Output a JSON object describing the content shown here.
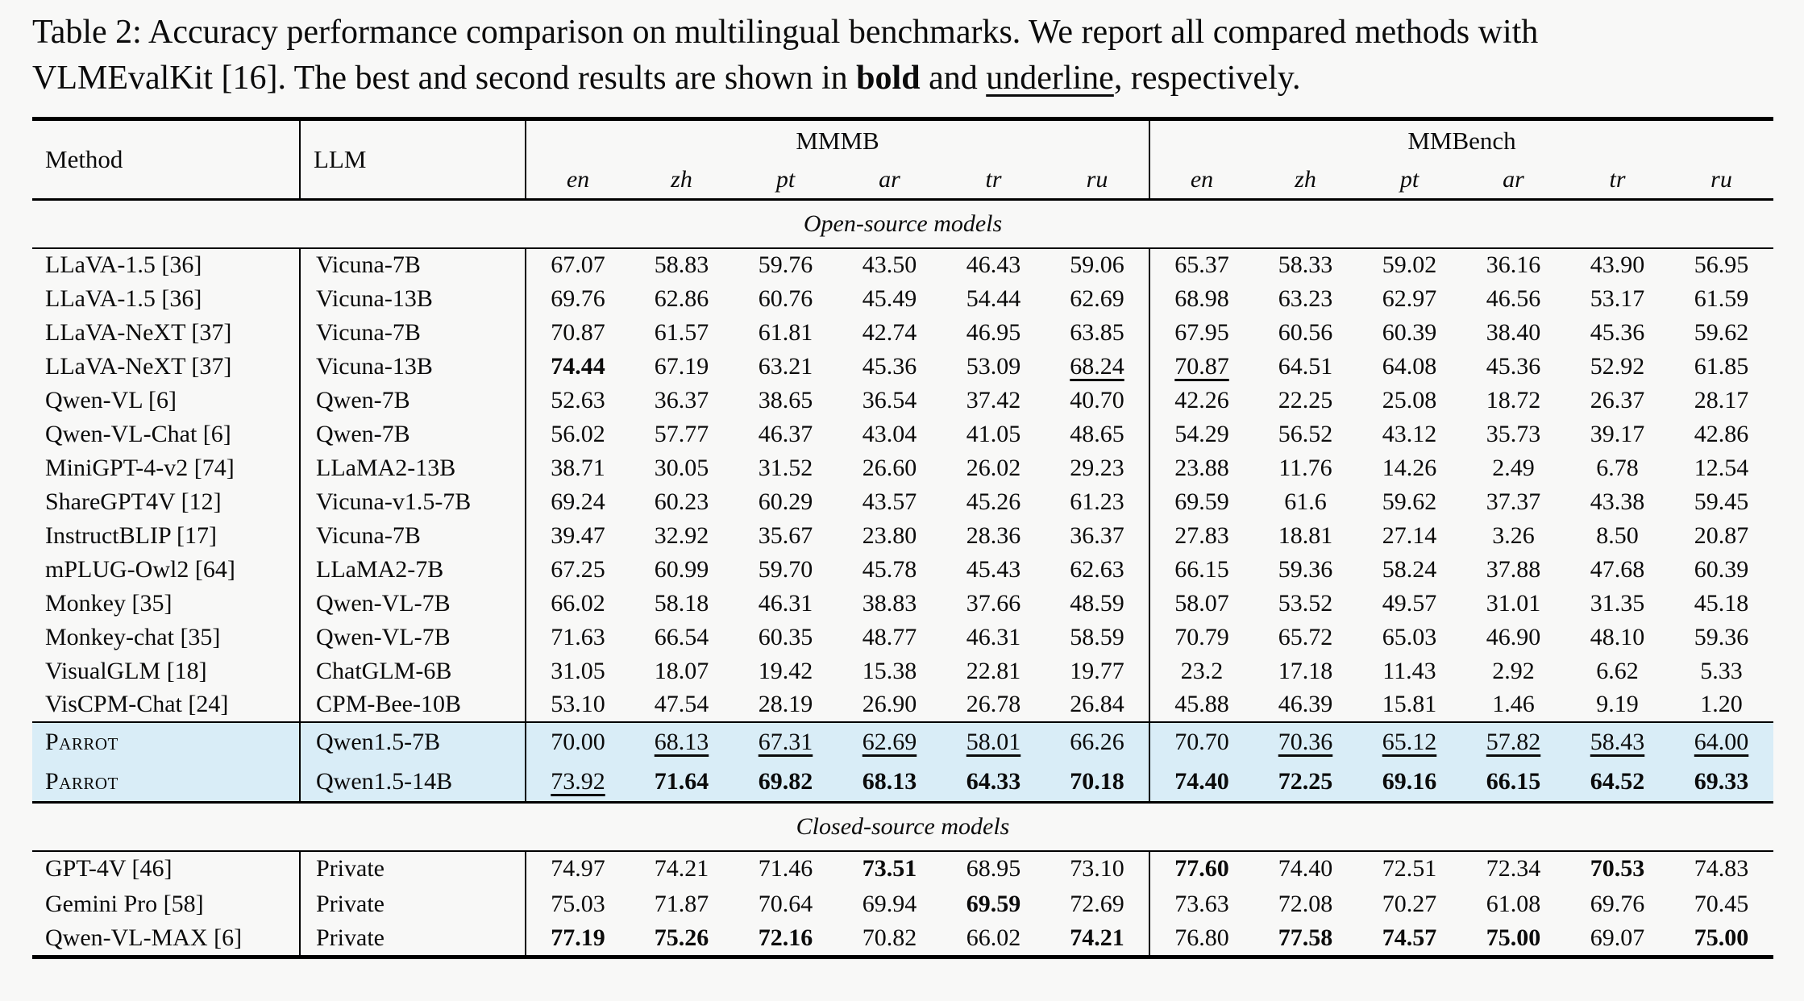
{
  "caption": {
    "line1": "Table 2: Accuracy performance comparison on multilingual benchmarks. We report all compared methods with",
    "line2_prefix": "VLMEvalKit [16]. The best and second results are shown in ",
    "line2_bold": "bold",
    "line2_mid": " and ",
    "line2_underline": "underline",
    "line2_suffix": ", respectively."
  },
  "colors": {
    "highlight": "#d9edf7"
  },
  "table": {
    "header": {
      "method": "Method",
      "llm": "LLM",
      "groups": [
        {
          "label": "MMMB",
          "langs": [
            "en",
            "zh",
            "pt",
            "ar",
            "tr",
            "ru"
          ]
        },
        {
          "label": "MMBench",
          "langs": [
            "en",
            "zh",
            "pt",
            "ar",
            "tr",
            "ru"
          ]
        }
      ]
    },
    "sections": [
      {
        "label": "Open-source models",
        "highlight": false,
        "rows": [
          {
            "method": "LLaVA-1.5 [36]",
            "llm": "Vicuna-7B",
            "vals": [
              "67.07",
              "58.83",
              "59.76",
              "43.50",
              "46.43",
              "59.06",
              "65.37",
              "58.33",
              "59.02",
              "36.16",
              "43.90",
              "56.95"
            ],
            "styles": [
              "",
              "",
              "",
              "",
              "",
              "",
              "",
              "",
              "",
              "",
              "",
              ""
            ]
          },
          {
            "method": "LLaVA-1.5 [36]",
            "llm": "Vicuna-13B",
            "vals": [
              "69.76",
              "62.86",
              "60.76",
              "45.49",
              "54.44",
              "62.69",
              "68.98",
              "63.23",
              "62.97",
              "46.56",
              "53.17",
              "61.59"
            ],
            "styles": [
              "",
              "",
              "",
              "",
              "",
              "",
              "",
              "",
              "",
              "",
              "",
              ""
            ]
          },
          {
            "method": "LLaVA-NeXT [37]",
            "llm": "Vicuna-7B",
            "vals": [
              "70.87",
              "61.57",
              "61.81",
              "42.74",
              "46.95",
              "63.85",
              "67.95",
              "60.56",
              "60.39",
              "38.40",
              "45.36",
              "59.62"
            ],
            "styles": [
              "",
              "",
              "",
              "",
              "",
              "",
              "",
              "",
              "",
              "",
              "",
              ""
            ]
          },
          {
            "method": "LLaVA-NeXT [37]",
            "llm": "Vicuna-13B",
            "vals": [
              "74.44",
              "67.19",
              "63.21",
              "45.36",
              "53.09",
              "68.24",
              "70.87",
              "64.51",
              "64.08",
              "45.36",
              "52.92",
              "61.85"
            ],
            "styles": [
              "b",
              "",
              "",
              "",
              "",
              "u",
              "u",
              "",
              "",
              "",
              "",
              ""
            ]
          },
          {
            "method": "Qwen-VL [6]",
            "llm": "Qwen-7B",
            "vals": [
              "52.63",
              "36.37",
              "38.65",
              "36.54",
              "37.42",
              "40.70",
              "42.26",
              "22.25",
              "25.08",
              "18.72",
              "26.37",
              "28.17"
            ],
            "styles": [
              "",
              "",
              "",
              "",
              "",
              "",
              "",
              "",
              "",
              "",
              "",
              ""
            ]
          },
          {
            "method": "Qwen-VL-Chat [6]",
            "llm": "Qwen-7B",
            "vals": [
              "56.02",
              "57.77",
              "46.37",
              "43.04",
              "41.05",
              "48.65",
              "54.29",
              "56.52",
              "43.12",
              "35.73",
              "39.17",
              "42.86"
            ],
            "styles": [
              "",
              "",
              "",
              "",
              "",
              "",
              "",
              "",
              "",
              "",
              "",
              ""
            ]
          },
          {
            "method": "MiniGPT-4-v2 [74]",
            "llm": "LLaMA2-13B",
            "vals": [
              "38.71",
              "30.05",
              "31.52",
              "26.60",
              "26.02",
              "29.23",
              "23.88",
              "11.76",
              "14.26",
              "2.49",
              "6.78",
              "12.54"
            ],
            "styles": [
              "",
              "",
              "",
              "",
              "",
              "",
              "",
              "",
              "",
              "",
              "",
              ""
            ]
          },
          {
            "method": "ShareGPT4V [12]",
            "llm": "Vicuna-v1.5-7B",
            "vals": [
              "69.24",
              "60.23",
              "60.29",
              "43.57",
              "45.26",
              "61.23",
              "69.59",
              "61.6",
              "59.62",
              "37.37",
              "43.38",
              "59.45"
            ],
            "styles": [
              "",
              "",
              "",
              "",
              "",
              "",
              "",
              "",
              "",
              "",
              "",
              ""
            ]
          },
          {
            "method": "InstructBLIP [17]",
            "llm": "Vicuna-7B",
            "vals": [
              "39.47",
              "32.92",
              "35.67",
              "23.80",
              "28.36",
              "36.37",
              "27.83",
              "18.81",
              "27.14",
              "3.26",
              "8.50",
              "20.87"
            ],
            "styles": [
              "",
              "",
              "",
              "",
              "",
              "",
              "",
              "",
              "",
              "",
              "",
              ""
            ]
          },
          {
            "method": "mPLUG-Owl2 [64]",
            "llm": "LLaMA2-7B",
            "vals": [
              "67.25",
              "60.99",
              "59.70",
              "45.78",
              "45.43",
              "62.63",
              "66.15",
              "59.36",
              "58.24",
              "37.88",
              "47.68",
              "60.39"
            ],
            "styles": [
              "",
              "",
              "",
              "",
              "",
              "",
              "",
              "",
              "",
              "",
              "",
              ""
            ]
          },
          {
            "method": "Monkey [35]",
            "llm": "Qwen-VL-7B",
            "vals": [
              "66.02",
              "58.18",
              "46.31",
              "38.83",
              "37.66",
              "48.59",
              "58.07",
              "53.52",
              "49.57",
              "31.01",
              "31.35",
              "45.18"
            ],
            "styles": [
              "",
              "",
              "",
              "",
              "",
              "",
              "",
              "",
              "",
              "",
              "",
              ""
            ]
          },
          {
            "method": "Monkey-chat [35]",
            "llm": "Qwen-VL-7B",
            "vals": [
              "71.63",
              "66.54",
              "60.35",
              "48.77",
              "46.31",
              "58.59",
              "70.79",
              "65.72",
              "65.03",
              "46.90",
              "48.10",
              "59.36"
            ],
            "styles": [
              "",
              "",
              "",
              "",
              "",
              "",
              "",
              "",
              "",
              "",
              "",
              ""
            ]
          },
          {
            "method": "VisualGLM [18]",
            "llm": "ChatGLM-6B",
            "vals": [
              "31.05",
              "18.07",
              "19.42",
              "15.38",
              "22.81",
              "19.77",
              "23.2",
              "17.18",
              "11.43",
              "2.92",
              "6.62",
              "5.33"
            ],
            "styles": [
              "",
              "",
              "",
              "",
              "",
              "",
              "",
              "",
              "",
              "",
              "",
              ""
            ]
          },
          {
            "method": "VisCPM-Chat [24]",
            "llm": "CPM-Bee-10B",
            "vals": [
              "53.10",
              "47.54",
              "28.19",
              "26.90",
              "26.78",
              "26.84",
              "45.88",
              "46.39",
              "15.81",
              "1.46",
              "9.19",
              "1.20"
            ],
            "styles": [
              "",
              "",
              "",
              "",
              "",
              "",
              "",
              "",
              "",
              "",
              "",
              ""
            ]
          }
        ]
      },
      {
        "label": null,
        "highlight": true,
        "rows": [
          {
            "method": "Parrot",
            "llm": "Qwen1.5-7B",
            "sc": true,
            "vals": [
              "70.00",
              "68.13",
              "67.31",
              "62.69",
              "58.01",
              "66.26",
              "70.70",
              "70.36",
              "65.12",
              "57.82",
              "58.43",
              "64.00"
            ],
            "styles": [
              "",
              "u",
              "u",
              "u",
              "u",
              "",
              "",
              "u",
              "u",
              "u",
              "u",
              "u"
            ]
          },
          {
            "method": "Parrot",
            "llm": "Qwen1.5-14B",
            "sc": true,
            "vals": [
              "73.92",
              "71.64",
              "69.82",
              "68.13",
              "64.33",
              "70.18",
              "74.40",
              "72.25",
              "69.16",
              "66.15",
              "64.52",
              "69.33"
            ],
            "styles": [
              "u",
              "b",
              "b",
              "b",
              "b",
              "b",
              "b",
              "b",
              "b",
              "b",
              "b",
              "b"
            ]
          }
        ]
      },
      {
        "label": "Closed-source models",
        "rule_top": true,
        "highlight": false,
        "rows": [
          {
            "method": "GPT-4V [46]",
            "llm": "Private",
            "vals": [
              "74.97",
              "74.21",
              "71.46",
              "73.51",
              "68.95",
              "73.10",
              "77.60",
              "74.40",
              "72.51",
              "72.34",
              "70.53",
              "74.83"
            ],
            "styles": [
              "",
              "",
              "",
              "b",
              "",
              "",
              "b",
              "",
              "",
              "",
              "b",
              ""
            ]
          },
          {
            "method": "Gemini Pro [58]",
            "llm": "Private",
            "vals": [
              "75.03",
              "71.87",
              "70.64",
              "69.94",
              "69.59",
              "72.69",
              "73.63",
              "72.08",
              "70.27",
              "61.08",
              "69.76",
              "70.45"
            ],
            "styles": [
              "",
              "",
              "",
              "",
              "b",
              "",
              "",
              "",
              "",
              "",
              "",
              ""
            ]
          },
          {
            "method": "Qwen-VL-MAX [6]",
            "llm": "Private",
            "vals": [
              "77.19",
              "75.26",
              "72.16",
              "70.82",
              "66.02",
              "74.21",
              "76.80",
              "77.58",
              "74.57",
              "75.00",
              "69.07",
              "75.00"
            ],
            "styles": [
              "b",
              "b",
              "b",
              "",
              "",
              "b",
              "",
              "b",
              "b",
              "b",
              "",
              "b"
            ]
          }
        ]
      }
    ]
  }
}
